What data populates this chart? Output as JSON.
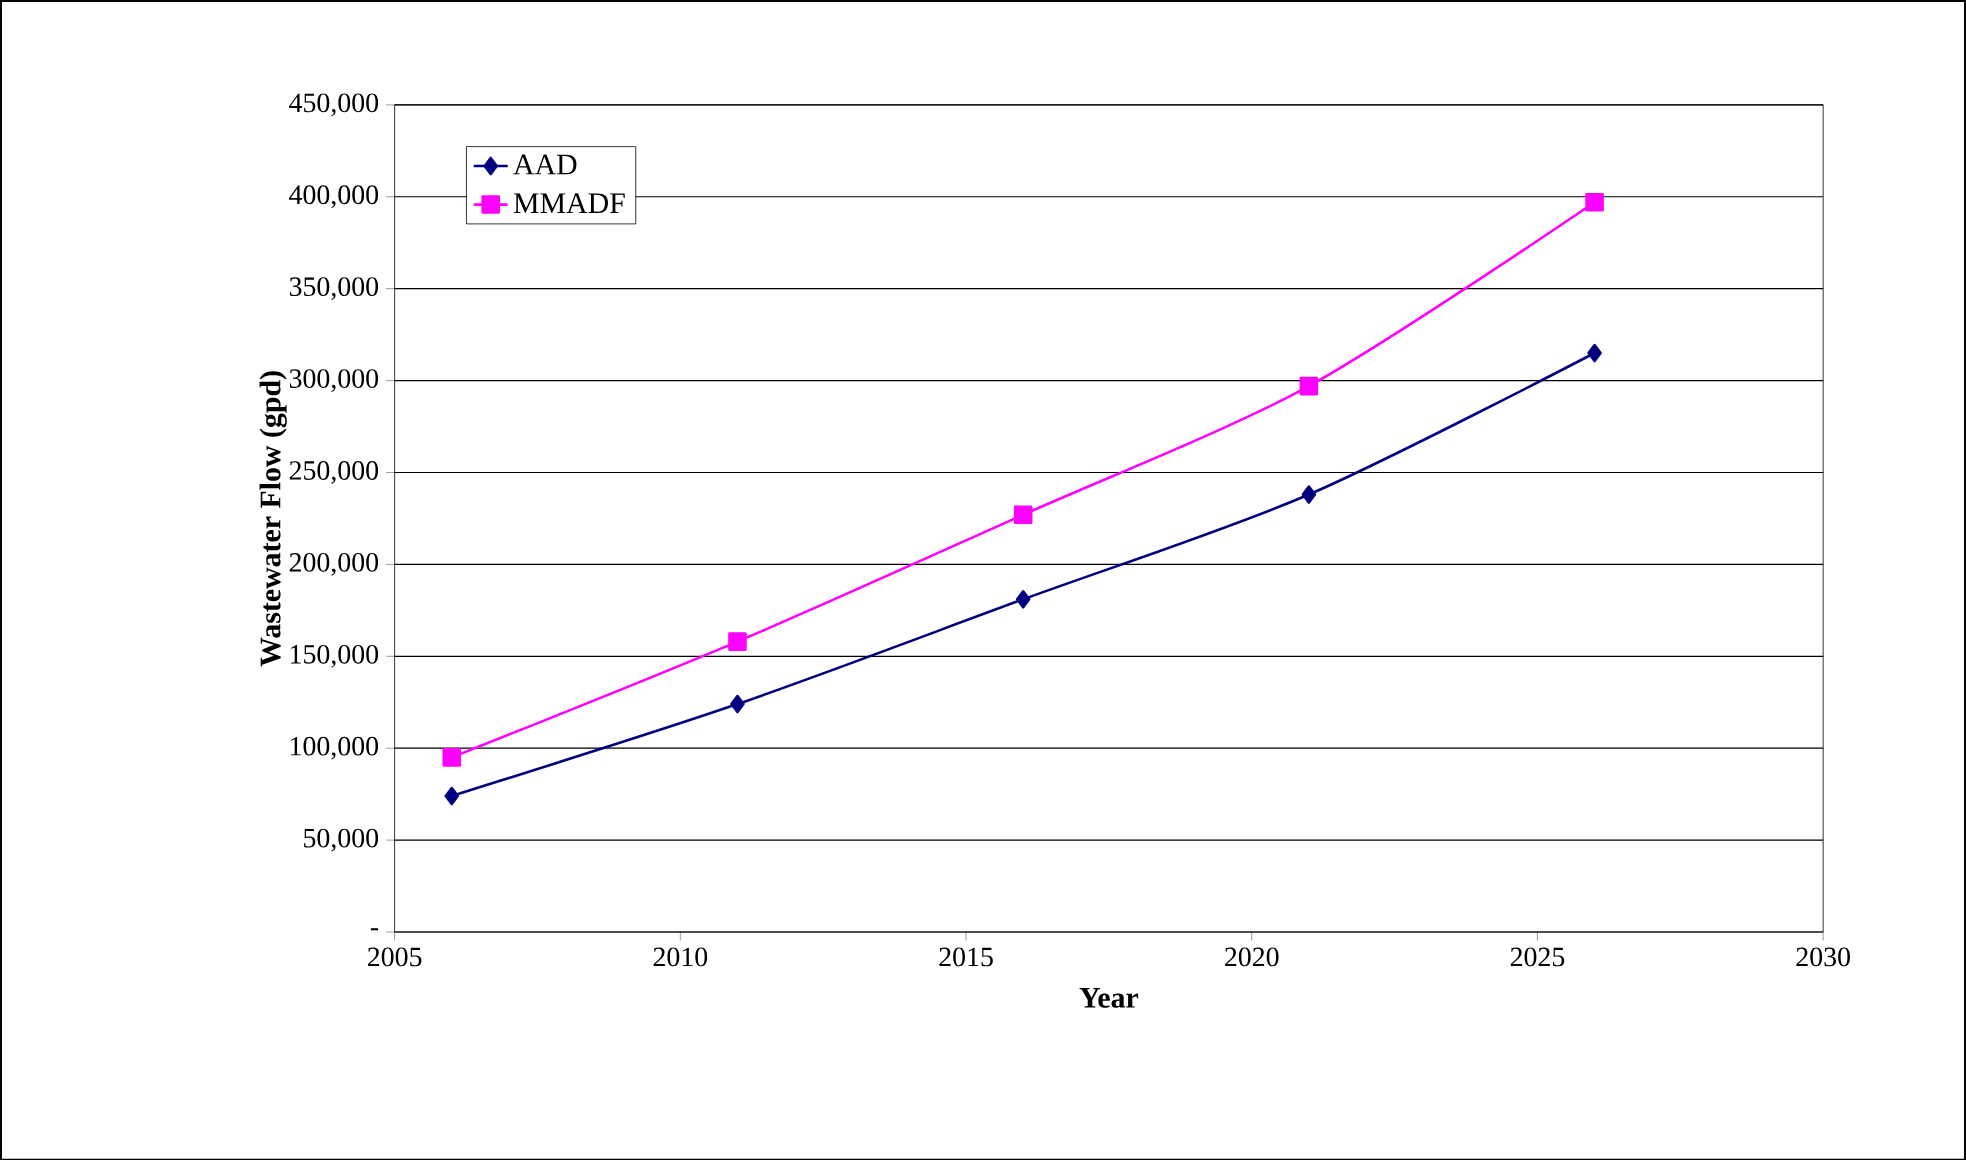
{
  "chart_data": {
    "type": "line",
    "xlabel": "Year",
    "ylabel": "Wastewater Flow (gpd)",
    "x": [
      2006,
      2011,
      2016,
      2021,
      2026
    ],
    "series": [
      {
        "name": "AAD",
        "color": "#000080",
        "marker": "diamond",
        "values": [
          74000,
          124000,
          181000,
          238000,
          315000
        ]
      },
      {
        "name": "MMADF",
        "color": "#ff00ff",
        "marker": "square",
        "values": [
          95000,
          158000,
          227000,
          297000,
          397000
        ]
      }
    ],
    "xlim": [
      2005,
      2030
    ],
    "xticks": [
      2005,
      2010,
      2015,
      2020,
      2025,
      2030
    ],
    "ylim": [
      0,
      450000
    ],
    "yticks": [
      {
        "value": 0,
        "label": "-"
      },
      {
        "value": 50000,
        "label": "50,000"
      },
      {
        "value": 100000,
        "label": "100,000"
      },
      {
        "value": 150000,
        "label": "150,000"
      },
      {
        "value": 200000,
        "label": "200,000"
      },
      {
        "value": 250000,
        "label": "250,000"
      },
      {
        "value": 300000,
        "label": "300,000"
      },
      {
        "value": 350000,
        "label": "350,000"
      },
      {
        "value": 400000,
        "label": "400,000"
      },
      {
        "value": 450000,
        "label": "450,000"
      }
    ],
    "grid": "y",
    "legend": "top left",
    "line_style": "solid"
  }
}
